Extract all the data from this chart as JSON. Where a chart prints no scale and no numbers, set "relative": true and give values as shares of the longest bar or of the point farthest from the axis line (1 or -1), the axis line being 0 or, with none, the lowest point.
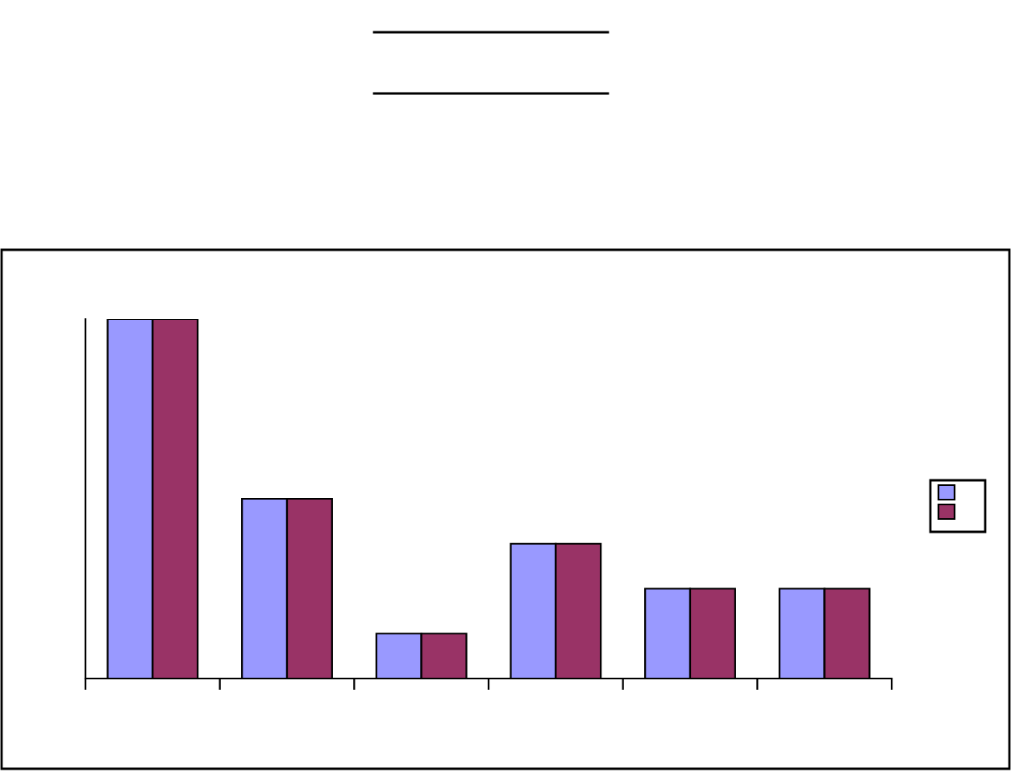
{
  "chart_data": {
    "type": "bar",
    "relative": true,
    "categories": [
      null,
      null,
      null,
      null,
      null,
      null
    ],
    "series": [
      {
        "color": "#9999ff",
        "values": [
          1,
          0.5,
          0.125,
          0.375,
          0.25,
          0.25
        ]
      },
      {
        "color": "#993366",
        "values": [
          1,
          0.5,
          0.125,
          0.375,
          0.25,
          0.25
        ]
      }
    ],
    "grid": false
  }
}
